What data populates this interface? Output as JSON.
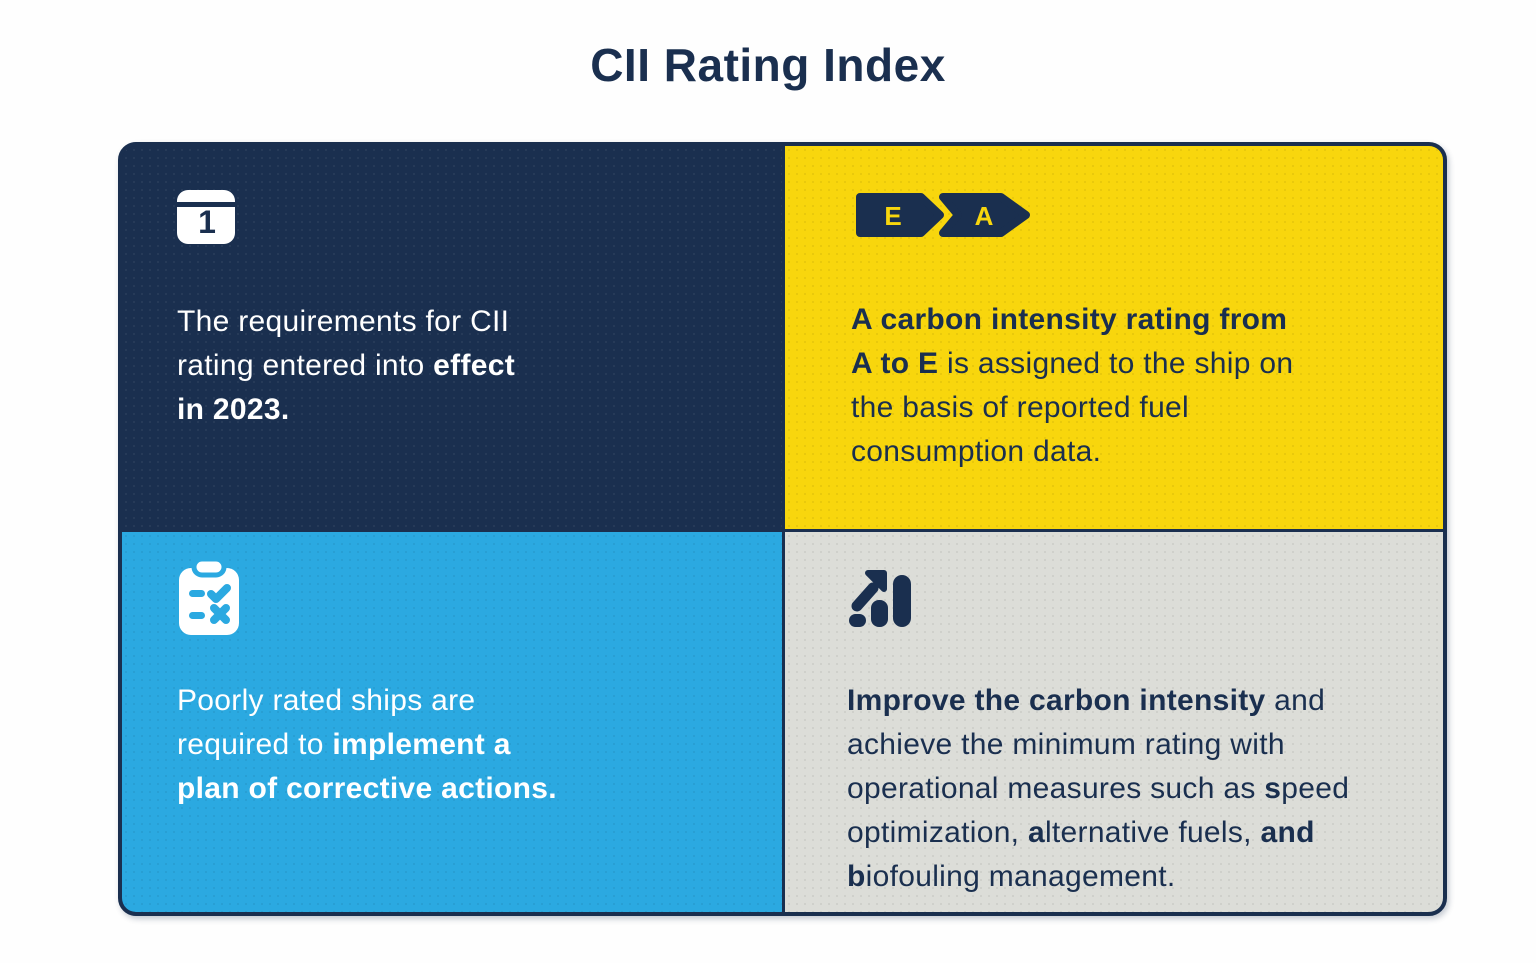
{
  "title": "CII Rating Index",
  "colors": {
    "navy": "#1a2f4f",
    "yellow": "#f8d60d",
    "blue": "#2ba9e1",
    "gray": "#dcddd8",
    "white": "#ffffff"
  },
  "rating_badges": {
    "letters": [
      "E",
      "A"
    ]
  },
  "calendar_icon_number": "1",
  "quadrants": [
    {
      "name": "cii-requirements",
      "icon": "calendar-day-1-icon",
      "lines": [
        [
          {
            "t": "The requirements for CII",
            "b": false
          }
        ],
        [
          {
            "t": "rating entered into ",
            "b": false
          },
          {
            "t": "effect",
            "b": true
          }
        ],
        [
          {
            "t": "in 2023.",
            "b": true
          }
        ]
      ]
    },
    {
      "name": "carbon-intensity-rating",
      "icon": "rating-scale-e-to-a-icon",
      "lines": [
        [
          {
            "t": "A carbon intensity rating from",
            "b": true
          }
        ],
        [
          {
            "t": "A to E",
            "b": true
          },
          {
            "t": " is assigned to the ship on",
            "b": false
          }
        ],
        [
          {
            "t": "the basis of reported fuel",
            "b": false
          }
        ],
        [
          {
            "t": "consumption data.",
            "b": false
          }
        ]
      ]
    },
    {
      "name": "corrective-actions",
      "icon": "clipboard-check-cross-icon",
      "lines": [
        [
          {
            "t": "Poorly rated ships are",
            "b": false
          }
        ],
        [
          {
            "t": "required to ",
            "b": false
          },
          {
            "t": "implement a",
            "b": true
          }
        ],
        [
          {
            "t": "plan of corrective actions.",
            "b": true
          }
        ]
      ]
    },
    {
      "name": "improve-carbon-intensity",
      "icon": "bar-chart-up-arrow-icon",
      "lines": [
        [
          {
            "t": "Improve the carbon intensity",
            "b": true
          },
          {
            "t": " and",
            "b": false
          }
        ],
        [
          {
            "t": "achieve the minimum rating with",
            "b": false
          }
        ],
        [
          {
            "t": "operational measures such as ",
            "b": false
          },
          {
            "t": "s",
            "b": true
          },
          {
            "t": "peed",
            "b": false
          }
        ],
        [
          {
            "t": "optimization, ",
            "b": false
          },
          {
            "t": "a",
            "b": true
          },
          {
            "t": "lternative fuels, ",
            "b": false
          },
          {
            "t": "and",
            "b": true
          }
        ],
        [
          {
            "t": "b",
            "b": true
          },
          {
            "t": "iofouling management.",
            "b": false
          }
        ]
      ]
    }
  ]
}
